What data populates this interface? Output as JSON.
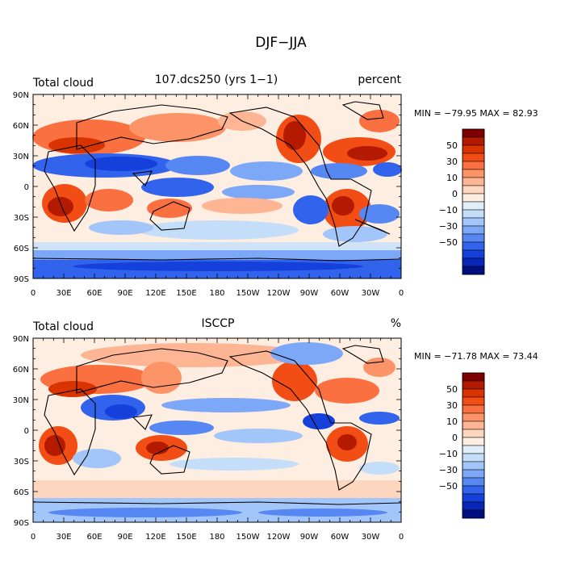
{
  "figure": {
    "title": "DJF−JJA"
  },
  "axes": {
    "lat_labels": [
      "90N",
      "60N",
      "30N",
      "0",
      "30S",
      "60S",
      "90S"
    ],
    "lon_labels": [
      "0",
      "30E",
      "60E",
      "90E",
      "120E",
      "150E",
      "180",
      "150W",
      "120W",
      "90W",
      "60W",
      "30W",
      "0"
    ]
  },
  "panels": [
    {
      "variable": "Total cloud",
      "source": "107.dcs250 (yrs 1−1)",
      "units": "percent",
      "stats": "MIN = −79.95 MAX =  82.93"
    },
    {
      "variable": "Total cloud",
      "source": "ISCCP",
      "units": "%",
      "stats": "MIN = −71.78 MAX =  73.44"
    }
  ],
  "colorbar": {
    "labels": [
      "50",
      "30",
      "10",
      "0",
      "−10",
      "−30",
      "−50"
    ],
    "colors": [
      "#7f0000",
      "#b31a00",
      "#d93300",
      "#f24d14",
      "#fa7040",
      "#fc9468",
      "#fdb594",
      "#fdd6bf",
      "#fdeee1",
      "#e0eefa",
      "#c4defa",
      "#a3c6fa",
      "#7da8f7",
      "#5787f2",
      "#3163ec",
      "#1540dc",
      "#0826b8",
      "#000f80"
    ]
  }
}
